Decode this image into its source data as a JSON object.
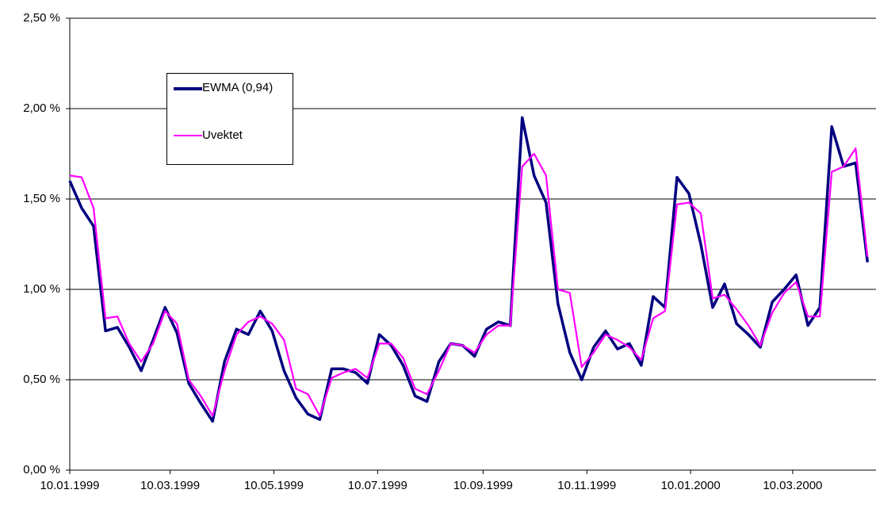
{
  "chart_data": {
    "type": "line",
    "x": [
      "10.01.1999",
      "17.01.1999",
      "24.01.1999",
      "31.01.1999",
      "07.02.1999",
      "14.02.1999",
      "21.02.1999",
      "28.02.1999",
      "07.03.1999",
      "14.03.1999",
      "21.03.1999",
      "28.03.1999",
      "04.04.1999",
      "11.04.1999",
      "18.04.1999",
      "25.04.1999",
      "02.05.1999",
      "09.05.1999",
      "16.05.1999",
      "23.05.1999",
      "30.05.1999",
      "06.06.1999",
      "13.06.1999",
      "20.06.1999",
      "27.06.1999",
      "04.07.1999",
      "11.07.1999",
      "18.07.1999",
      "25.07.1999",
      "01.08.1999",
      "08.08.1999",
      "15.08.1999",
      "22.08.1999",
      "29.08.1999",
      "05.09.1999",
      "12.09.1999",
      "19.09.1999",
      "26.09.1999",
      "03.10.1999",
      "10.10.1999",
      "17.10.1999",
      "24.10.1999",
      "31.10.1999",
      "07.11.1999",
      "14.11.1999",
      "21.11.1999",
      "28.11.1999",
      "05.12.1999",
      "12.12.1999",
      "19.12.1999",
      "26.12.1999",
      "02.01.2000",
      "09.01.2000",
      "16.01.2000",
      "23.01.2000",
      "30.01.2000",
      "06.02.2000",
      "13.02.2000",
      "20.02.2000",
      "27.02.2000",
      "05.03.2000",
      "12.03.2000",
      "19.03.2000",
      "26.03.2000",
      "02.04.2000",
      "09.04.2000",
      "16.04.2000",
      "23.04.2000"
    ],
    "series": [
      {
        "name": "EWMA (0,94)",
        "color": "#000080",
        "values": [
          1.6,
          1.45,
          1.35,
          0.77,
          0.79,
          0.68,
          0.55,
          0.72,
          0.9,
          0.76,
          0.48,
          0.37,
          0.27,
          0.6,
          0.78,
          0.75,
          0.88,
          0.77,
          0.55,
          0.4,
          0.31,
          0.28,
          0.56,
          0.56,
          0.54,
          0.48,
          0.75,
          0.69,
          0.58,
          0.41,
          0.38,
          0.6,
          0.7,
          0.69,
          0.63,
          0.78,
          0.82,
          0.8,
          1.95,
          1.63,
          1.48,
          0.92,
          0.65,
          0.5,
          0.68,
          0.77,
          0.67,
          0.7,
          0.58,
          0.96,
          0.9,
          1.62,
          1.53,
          1.25,
          0.9,
          1.03,
          0.81,
          0.75,
          0.68,
          0.93,
          1.0,
          1.08,
          0.8,
          0.9,
          1.9,
          1.68,
          1.7,
          1.15
        ]
      },
      {
        "name": "Uvektet",
        "color": "#ff00ff",
        "values": [
          1.63,
          1.62,
          1.45,
          0.84,
          0.85,
          0.7,
          0.6,
          0.7,
          0.88,
          0.81,
          0.5,
          0.41,
          0.3,
          0.55,
          0.75,
          0.82,
          0.85,
          0.81,
          0.72,
          0.45,
          0.42,
          0.3,
          0.51,
          0.54,
          0.56,
          0.51,
          0.7,
          0.7,
          0.62,
          0.45,
          0.42,
          0.55,
          0.7,
          0.69,
          0.65,
          0.75,
          0.8,
          0.8,
          1.68,
          1.75,
          1.63,
          1.0,
          0.98,
          0.57,
          0.65,
          0.75,
          0.72,
          0.68,
          0.61,
          0.84,
          0.88,
          1.47,
          1.48,
          1.42,
          0.95,
          0.97,
          0.89,
          0.8,
          0.69,
          0.87,
          0.98,
          1.04,
          0.85,
          0.85,
          1.65,
          1.68,
          1.78,
          1.18
        ]
      }
    ],
    "xlim": [
      "10.01.1999",
      "28.04.2000"
    ],
    "xticks": [
      "10.01.1999",
      "10.03.1999",
      "10.05.1999",
      "10.07.1999",
      "10.09.1999",
      "10.11.1999",
      "10.01.2000",
      "10.03.2000"
    ],
    "ylim": [
      0,
      2.5
    ],
    "yticks": [
      {
        "value": 0,
        "label": "0,00 %"
      },
      {
        "value": 0.5,
        "label": "0,50 %"
      },
      {
        "value": 1,
        "label": "1,00 %"
      },
      {
        "value": 1.5,
        "label": "1,50 %"
      },
      {
        "value": 2,
        "label": "2,00 %"
      },
      {
        "value": 2.5,
        "label": "2,50 %"
      }
    ],
    "grid": true
  }
}
